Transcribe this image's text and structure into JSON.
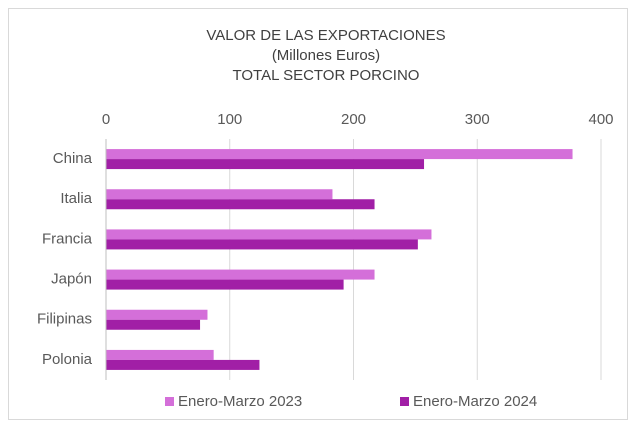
{
  "chart_data": {
    "type": "hbar",
    "title": [
      "VALOR DE LAS EXPORTACIONES",
      "(Millones Euros)",
      "TOTAL SECTOR PORCINO"
    ],
    "categories": [
      "China",
      "Italia",
      "Francia",
      "Japón",
      "Filipinas",
      "Polonia"
    ],
    "series": [
      {
        "name": "Enero-Marzo 2023",
        "color": "#d46fd9",
        "values": [
          377,
          183,
          263,
          217,
          82,
          87
        ]
      },
      {
        "name": "Enero-Marzo 2024",
        "color": "#a11fa6",
        "values": [
          257,
          217,
          252,
          192,
          76,
          124
        ]
      }
    ],
    "xlim": [
      0,
      400
    ],
    "xticks": [
      0,
      100,
      200,
      300,
      400
    ],
    "grid": true,
    "legend": "bottom"
  }
}
